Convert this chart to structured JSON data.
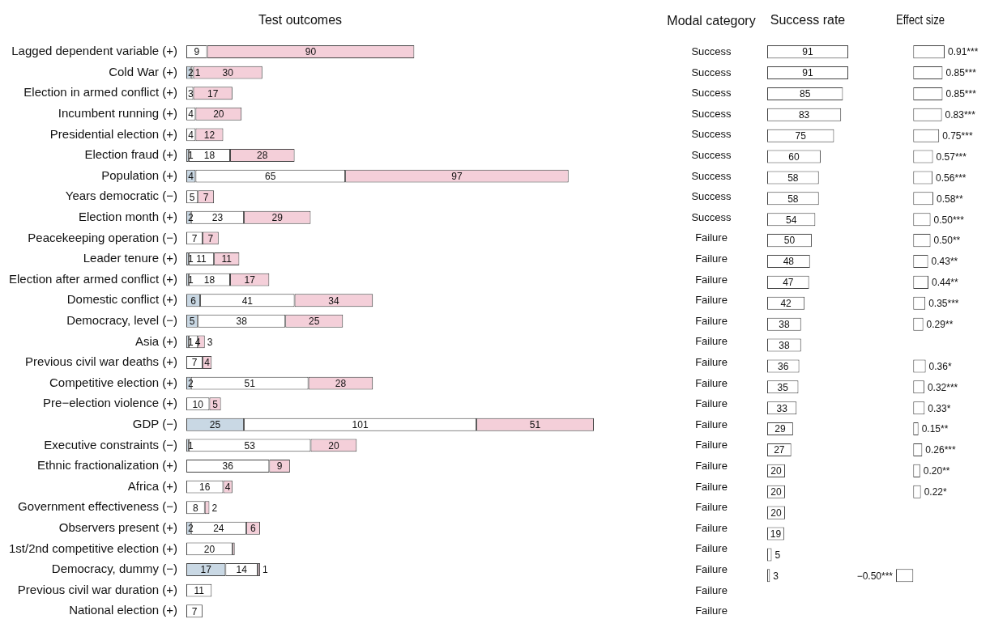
{
  "chart_data": [
    {
      "type": "bar",
      "title": "Test outcomes",
      "orientation": "horizontal",
      "stacked": true,
      "tick_labels": "y",
      "categories": [
        "Lagged dependent variable (+)",
        "Cold War (+)",
        "Election in armed conflict (+)",
        "Incumbent running (+)",
        "Presidential election (+)",
        "Election fraud (+)",
        "Population (+)",
        "Years democratic (−)",
        "Election month (+)",
        "Peacekeeping operation (−)",
        "Leader tenure (+)",
        "Election after armed conflict (+)",
        "Domestic conflict (+)",
        "Democracy, level (−)",
        "Asia (+)",
        "Previous civil war deaths (+)",
        "Competitive election (+)",
        "Pre−election violence (+)",
        "GDP (−)",
        "Executive constraints (−)",
        "Ethnic fractionalization (+)",
        "Africa (+)",
        "Government effectiveness (−)",
        "Observers present (+)",
        "1st/2nd competitive election (+)",
        "Democracy, dummy (−)",
        "Previous civil war duration (+)",
        "National election (+)"
      ],
      "series": [
        {
          "color": "#c9d8e4",
          "values": [
            null,
            2,
            null,
            null,
            null,
            1,
            4,
            null,
            2,
            null,
            1,
            1,
            6,
            5,
            1,
            null,
            2,
            null,
            25,
            1,
            null,
            null,
            null,
            2,
            null,
            17,
            null,
            null
          ],
          "value_labels": [
            null,
            "2",
            null,
            null,
            null,
            "1",
            "4",
            null,
            "2",
            null,
            "1",
            "1",
            "6",
            "5",
            "1",
            null,
            "2",
            null,
            "25",
            "1",
            null,
            null,
            null,
            "2",
            null,
            "17",
            null,
            null
          ]
        },
        {
          "color": "#ffffff",
          "values": [
            9,
            1,
            3,
            4,
            4,
            18,
            65,
            5,
            23,
            7,
            11,
            18,
            41,
            38,
            4,
            7,
            51,
            10,
            101,
            53,
            36,
            16,
            8,
            24,
            20,
            14,
            11,
            7
          ],
          "value_labels": [
            "9",
            "1",
            "3",
            "4",
            "4",
            "18",
            "65",
            "5",
            "23",
            "7",
            "11",
            "18",
            "41",
            "38",
            "4",
            "7",
            "51",
            "10",
            "101",
            "53",
            "36",
            "16",
            "8",
            "24",
            "20",
            "14",
            "11",
            "7"
          ]
        },
        {
          "color": "#f4cfd9",
          "values": [
            90,
            30,
            17,
            20,
            12,
            28,
            97,
            7,
            29,
            7,
            11,
            17,
            34,
            25,
            3,
            4,
            28,
            5,
            51,
            20,
            9,
            4,
            2,
            6,
            1,
            1,
            null,
            null
          ],
          "value_labels": [
            "90",
            "30",
            "17",
            "20",
            "12",
            "28",
            "97",
            "7",
            "29",
            "7",
            "11",
            "17",
            "34",
            "25",
            "3",
            "4",
            "28",
            "5",
            "51",
            "20",
            "9",
            "4",
            "2",
            "6",
            null,
            "1",
            null,
            null
          ]
        }
      ]
    },
    {
      "type": "other",
      "title": "Modal category",
      "annotations": [
        "Success",
        "Success",
        "Success",
        "Success",
        "Success",
        "Success",
        "Success",
        "Success",
        "Success",
        "Failure",
        "Failure",
        "Failure",
        "Failure",
        "Failure",
        "Failure",
        "Failure",
        "Failure",
        "Failure",
        "Failure",
        "Failure",
        "Failure",
        "Failure",
        "Failure",
        "Failure",
        "Failure",
        "Failure",
        "Failure",
        "Failure"
      ]
    },
    {
      "type": "bar",
      "title": "Success rate",
      "orientation": "horizontal",
      "tick_labels": false,
      "data_labels": true,
      "color": "#ffffff",
      "categories": [
        null,
        null,
        null,
        null,
        null,
        null,
        null,
        null,
        null,
        null,
        null,
        null,
        null,
        null,
        null,
        null,
        null,
        null,
        null,
        null,
        null,
        null,
        null,
        null,
        null,
        null,
        null,
        null
      ],
      "values": [
        91,
        91,
        85,
        83,
        75,
        60,
        58,
        58,
        54,
        50,
        48,
        47,
        42,
        38,
        38,
        36,
        35,
        33,
        29,
        27,
        20,
        20,
        20,
        19,
        5,
        3,
        null,
        null
      ]
    },
    {
      "type": "bar",
      "title": "Effect size",
      "orientation": "horizontal",
      "tick_labels": false,
      "color": "#ffffff",
      "categories": [
        null,
        null,
        null,
        null,
        null,
        null,
        null,
        null,
        null,
        null,
        null,
        null,
        null,
        null,
        null,
        null,
        null,
        null,
        null,
        null,
        null,
        null,
        null,
        null,
        null,
        null,
        null,
        null
      ],
      "values": [
        0.91,
        0.85,
        0.85,
        0.83,
        0.75,
        0.57,
        0.56,
        0.58,
        0.5,
        0.5,
        0.43,
        0.44,
        0.35,
        0.29,
        null,
        0.36,
        0.32,
        0.33,
        0.15,
        0.26,
        0.2,
        0.22,
        null,
        null,
        null,
        -0.5,
        null,
        null
      ],
      "value_labels": [
        "0.91***",
        "0.85***",
        "0.85***",
        "0.83***",
        "0.75***",
        "0.57***",
        "0.56***",
        "0.58**",
        "0.50***",
        "0.50**",
        "0.43**",
        "0.44**",
        "0.35***",
        "0.29**",
        null,
        "0.36*",
        "0.32***",
        "0.33*",
        "0.15**",
        "0.26***",
        "0.20**",
        "0.22*",
        null,
        null,
        null,
        "−0.50***",
        null,
        null
      ]
    }
  ]
}
